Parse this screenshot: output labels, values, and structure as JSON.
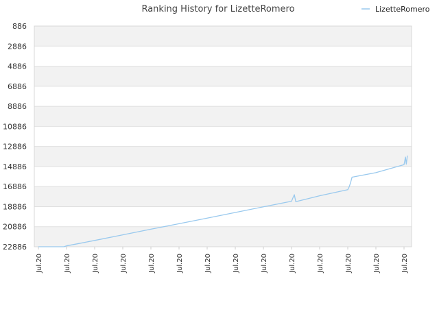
{
  "chart_data": {
    "type": "line",
    "title": "Ranking History for LizetteRomero",
    "xlabel": "",
    "ylabel": "",
    "y_inverted": true,
    "ylim": [
      886,
      22886
    ],
    "y_ticks": [
      886,
      2886,
      4886,
      6886,
      8886,
      10886,
      12886,
      14886,
      16886,
      18886,
      20886,
      22886
    ],
    "x_tick_labels": [
      "Jul.20",
      "Jul.20",
      "Jul.20",
      "Jul.20",
      "Jul.20",
      "Jul.20",
      "Jul.20",
      "Jul.20",
      "Jul.20",
      "Jul.20",
      "Jul.20",
      "Jul.20",
      "Jul.20",
      "Jul.20"
    ],
    "grid": true,
    "legend_position": "top-right",
    "colors": {
      "series": "#99c9ee",
      "band": "#f2f2f2",
      "grid": "#e0e0e0",
      "axis": "#cccccc"
    },
    "series": [
      {
        "name": "LizetteRomero",
        "x": [
          0.0,
          0.9,
          1.0,
          1.5,
          2.0,
          3.0,
          4.0,
          5.0,
          6.0,
          7.0,
          8.0,
          9.0,
          9.05,
          9.1,
          9.15,
          10.0,
          11.0,
          11.05,
          11.1,
          11.15,
          12.0,
          13.0,
          13.05,
          13.08,
          13.12
        ],
        "y": [
          22886,
          22886,
          22800,
          22530,
          22260,
          21700,
          21140,
          20590,
          20030,
          19470,
          18900,
          18350,
          18000,
          17700,
          18400,
          17800,
          17200,
          16900,
          16500,
          15950,
          15500,
          14700,
          13950,
          14650,
          13800
        ]
      }
    ]
  }
}
